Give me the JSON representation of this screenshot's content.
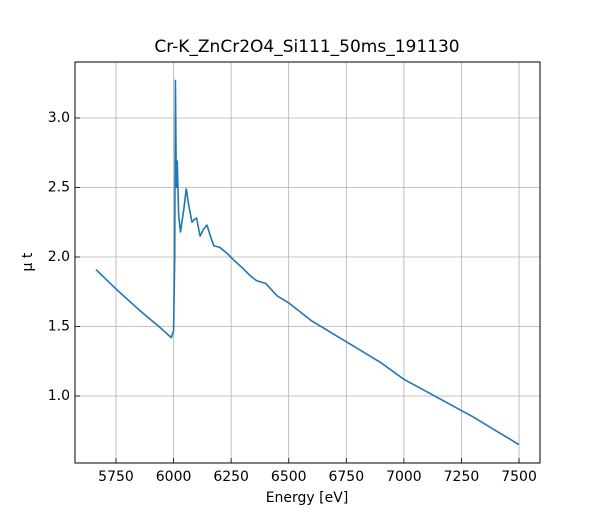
{
  "chart_data": {
    "type": "line",
    "title": "Cr-K_ZnCr2O4_Si111_50ms_191130",
    "xlabel": "Energy [eV]",
    "ylabel": "μ t",
    "x": [
      5663,
      5750,
      5850,
      5950,
      5990,
      6000,
      6005,
      6008,
      6012,
      6016,
      6022,
      6030,
      6045,
      6055,
      6065,
      6080,
      6090,
      6100,
      6115,
      6130,
      6145,
      6160,
      6175,
      6200,
      6230,
      6260,
      6300,
      6330,
      6360,
      6400,
      6450,
      6500,
      6600,
      6700,
      6800,
      6900,
      7000,
      7100,
      7200,
      7300,
      7400,
      7500
    ],
    "series": [
      {
        "name": "μ t",
        "color": "#1f77b4",
        "values": [
          1.91,
          1.77,
          1.62,
          1.48,
          1.42,
          1.47,
          2.0,
          3.27,
          2.5,
          2.69,
          2.3,
          2.18,
          2.35,
          2.49,
          2.38,
          2.25,
          2.27,
          2.28,
          2.15,
          2.2,
          2.23,
          2.15,
          2.08,
          2.07,
          2.03,
          1.98,
          1.92,
          1.87,
          1.83,
          1.81,
          1.72,
          1.67,
          1.54,
          1.44,
          1.34,
          1.24,
          1.12,
          1.03,
          0.94,
          0.85,
          0.75,
          0.65
        ]
      }
    ],
    "xlim": [
      5572,
      7591
    ],
    "ylim": [
      0.518,
      3.403
    ],
    "xticks": [
      5750,
      6000,
      6250,
      6500,
      6750,
      7000,
      7250,
      7500
    ],
    "yticks": [
      {
        "value": 1.0,
        "label": "1.0"
      },
      {
        "value": 1.5,
        "label": "1.5"
      },
      {
        "value": 2.0,
        "label": "2.0"
      },
      {
        "value": 2.5,
        "label": "2.5"
      },
      {
        "value": 3.0,
        "label": "3.0"
      }
    ],
    "grid": true
  }
}
